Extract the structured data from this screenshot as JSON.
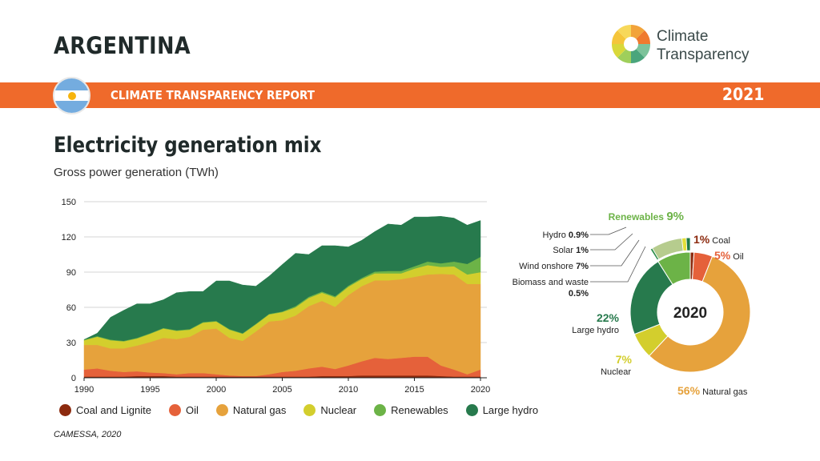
{
  "header": {
    "country": "ARGENTINA",
    "report": "CLIMATE TRANSPARENCY REPORT",
    "year": "2021",
    "logo_text_1": "Climate",
    "logo_text_2": "Transparency"
  },
  "section": {
    "title": "Electricity generation mix",
    "subtitle": "Gross power generation (TWh)"
  },
  "source": "CAMESSA, 2020",
  "colors": {
    "banner": "#ef6a2b",
    "coal": "#8c2a0e",
    "oil": "#e5613a",
    "gas": "#e6a23c",
    "nuclear": "#d3ce2d",
    "renewables": "#6cb347",
    "hydro": "#277a4d"
  },
  "chart_data": [
    {
      "type": "area",
      "stacked": true,
      "x": [
        1990,
        1991,
        1992,
        1993,
        1994,
        1995,
        1996,
        1997,
        1998,
        1999,
        2000,
        2001,
        2002,
        2003,
        2004,
        2005,
        2006,
        2007,
        2008,
        2009,
        2010,
        2011,
        2012,
        2013,
        2014,
        2015,
        2016,
        2017,
        2018,
        2019,
        2020
      ],
      "x_ticks": [
        "1990",
        "1995",
        "2000",
        "2005",
        "2010",
        "2015",
        "2020"
      ],
      "y_ticks": [
        "0",
        "30",
        "60",
        "90",
        "120",
        "150"
      ],
      "ylim": [
        0,
        150
      ],
      "series": [
        {
          "name": "Coal and Lignite",
          "color": "#8c2a0e",
          "values": [
            1,
            1,
            1,
            1,
            1.5,
            1.5,
            1.5,
            1,
            1,
            1,
            1,
            1,
            1,
            1,
            1,
            1,
            1,
            1,
            1.5,
            1.5,
            1.5,
            2,
            2,
            2,
            2,
            2,
            2,
            1.5,
            1,
            1,
            1
          ]
        },
        {
          "name": "Oil",
          "color": "#e5613a",
          "values": [
            6,
            7,
            5,
            4,
            4,
            3,
            2.5,
            2,
            3,
            3,
            2,
            1,
            0.5,
            0.5,
            2,
            4,
            5,
            7,
            8,
            6,
            9,
            12,
            15,
            14,
            15,
            16,
            16,
            9,
            6,
            2,
            6
          ]
        },
        {
          "name": "Natural gas",
          "color": "#e6a23c",
          "values": [
            21,
            20,
            19,
            20,
            22,
            26,
            30,
            30,
            31,
            37,
            39,
            32,
            30,
            38,
            45,
            44,
            47,
            53,
            56,
            53,
            60,
            64,
            66,
            67,
            67,
            68,
            70,
            78,
            81,
            77,
            73
          ]
        },
        {
          "name": "Nuclear",
          "color": "#d3ce2d",
          "values": [
            4,
            7,
            7,
            6,
            6,
            7,
            8,
            7,
            6,
            6,
            6,
            7,
            6,
            6,
            6,
            7,
            7,
            7,
            7,
            8,
            7,
            6,
            6,
            6,
            5,
            7,
            8,
            6,
            7,
            8,
            10
          ]
        },
        {
          "name": "Renewables",
          "color": "#6cb347",
          "values": [
            0.5,
            0.5,
            0.5,
            0.5,
            0.5,
            0.5,
            0.5,
            0.5,
            0.5,
            0.5,
            0.5,
            0.5,
            0.5,
            0.5,
            0.5,
            0.5,
            1,
            1,
            1,
            1,
            1,
            1,
            1.5,
            2,
            2,
            2,
            3,
            3,
            4,
            9,
            13
          ]
        },
        {
          "name": "Large hydro",
          "color": "#277a4d",
          "values": [
            0,
            2.5,
            19,
            26,
            29,
            25,
            24,
            32,
            32,
            26,
            34,
            41,
            41,
            32,
            32,
            40,
            45,
            36,
            39,
            43,
            33,
            32,
            34,
            40,
            39,
            42,
            38,
            40,
            37,
            33,
            31
          ]
        }
      ]
    },
    {
      "type": "pie",
      "center_label": "2020",
      "slices": [
        {
          "name": "Coal",
          "value": 1,
          "label": "1%",
          "color": "#8c2a0e"
        },
        {
          "name": "Oil",
          "value": 5,
          "label": "5%",
          "color": "#e5613a"
        },
        {
          "name": "Natural gas",
          "value": 56,
          "label": "56%",
          "color": "#e6a23c"
        },
        {
          "name": "Nuclear",
          "value": 7,
          "label": "7%",
          "color": "#d3ce2d"
        },
        {
          "name": "Large hydro",
          "value": 22,
          "label": "22%",
          "color": "#277a4d"
        },
        {
          "name": "Renewables",
          "value": 9,
          "label": "9%",
          "color": "#6cb347"
        }
      ],
      "renewables_breakdown": [
        {
          "name": "Biomass and waste",
          "label": "0.5%",
          "value": 0.5,
          "color": "#2f8f4c"
        },
        {
          "name": "Wind onshore",
          "label": "7%",
          "value": 7,
          "color": "#b6cc8e"
        },
        {
          "name": "Solar",
          "label": "1%",
          "value": 1,
          "color": "#e3df3a"
        },
        {
          "name": "Hydro",
          "label": "0.9%",
          "value": 0.9,
          "color": "#1f7a47"
        }
      ]
    }
  ]
}
